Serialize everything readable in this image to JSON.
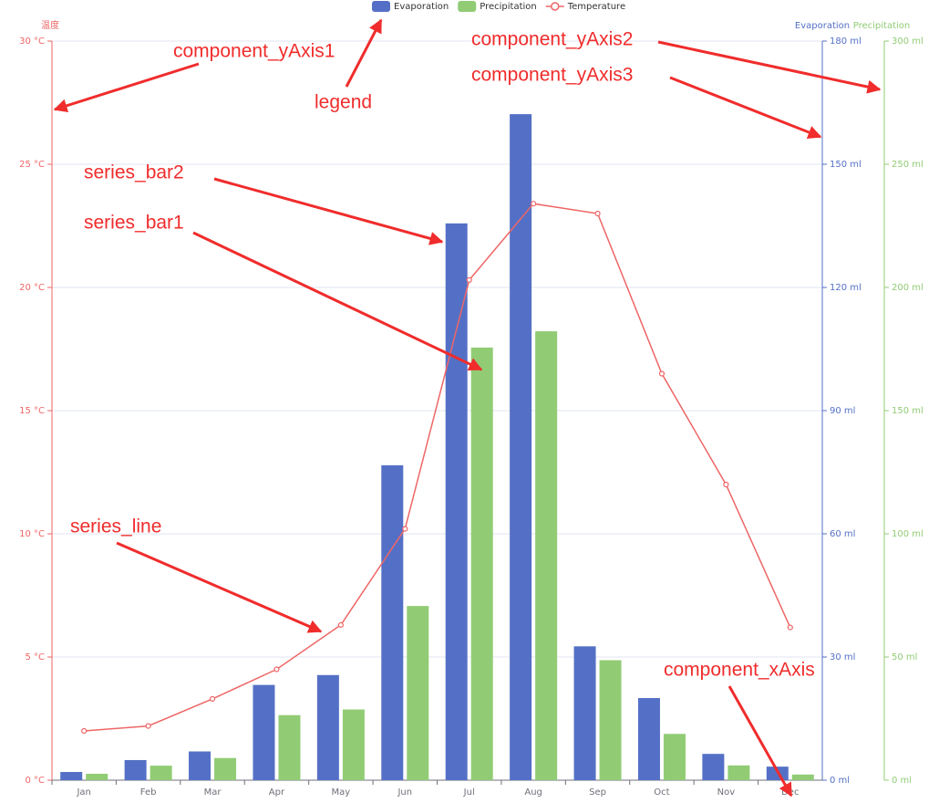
{
  "chart_data": {
    "type": "bar-line",
    "categories": [
      "Jan",
      "Feb",
      "Mar",
      "Apr",
      "May",
      "Jun",
      "Jul",
      "Aug",
      "Sep",
      "Oct",
      "Nov",
      "Dec"
    ],
    "series": [
      {
        "name": "Evaporation",
        "type": "bar",
        "color": "#5470c6",
        "axis": "y2",
        "values": [
          2.0,
          4.9,
          7.0,
          23.2,
          25.6,
          76.7,
          135.6,
          162.2,
          32.6,
          20.0,
          6.4,
          3.3
        ]
      },
      {
        "name": "Precipitation",
        "type": "bar",
        "color": "#91cc75",
        "axis": "y3",
        "values": [
          2.6,
          5.9,
          9.0,
          26.4,
          28.7,
          70.7,
          175.6,
          182.2,
          48.7,
          18.8,
          6.0,
          2.3
        ]
      },
      {
        "name": "Temperature",
        "type": "line",
        "color": "#ee6666",
        "axis": "y",
        "values": [
          2.0,
          2.2,
          3.3,
          4.5,
          6.3,
          10.2,
          20.3,
          23.4,
          23.0,
          16.5,
          12.0,
          6.2
        ]
      }
    ],
    "y_label": "温度",
    "ylim": [
      0,
      30
    ],
    "yticks": [
      {
        "value": 0,
        "label": "0 °C"
      },
      {
        "value": 5,
        "label": "5 °C"
      },
      {
        "value": 10,
        "label": "10 °C"
      },
      {
        "value": 15,
        "label": "15 °C"
      },
      {
        "value": 20,
        "label": "20 °C"
      },
      {
        "value": 25,
        "label": "25 °C"
      },
      {
        "value": 30,
        "label": "30 °C"
      }
    ],
    "y2lim": [
      0,
      180
    ],
    "y2ticks": [
      {
        "value": 0,
        "label": "0 ml"
      },
      {
        "value": 30,
        "label": "30 ml"
      },
      {
        "value": 60,
        "label": "60 ml"
      },
      {
        "value": 90,
        "label": "90 ml"
      },
      {
        "value": 120,
        "label": "120 ml"
      },
      {
        "value": 150,
        "label": "150 ml"
      },
      {
        "value": 180,
        "label": "180 ml"
      }
    ],
    "y3lim": [
      0,
      300
    ],
    "y3ticks": [
      {
        "value": 0,
        "label": "0 ml"
      },
      {
        "value": 50,
        "label": "50 ml"
      },
      {
        "value": 100,
        "label": "100 ml"
      },
      {
        "value": 150,
        "label": "150 ml"
      },
      {
        "value": 200,
        "label": "200 ml"
      },
      {
        "value": 250,
        "label": "250 ml"
      },
      {
        "value": 300,
        "label": "300 ml"
      }
    ],
    "grid": true,
    "legend": "top",
    "annotations": [
      "component_yAxis1",
      "legend",
      "component_yAxis2",
      "component_yAxis3",
      "series_bar2",
      "series_bar1",
      "series_line",
      "component_xAxis"
    ]
  }
}
